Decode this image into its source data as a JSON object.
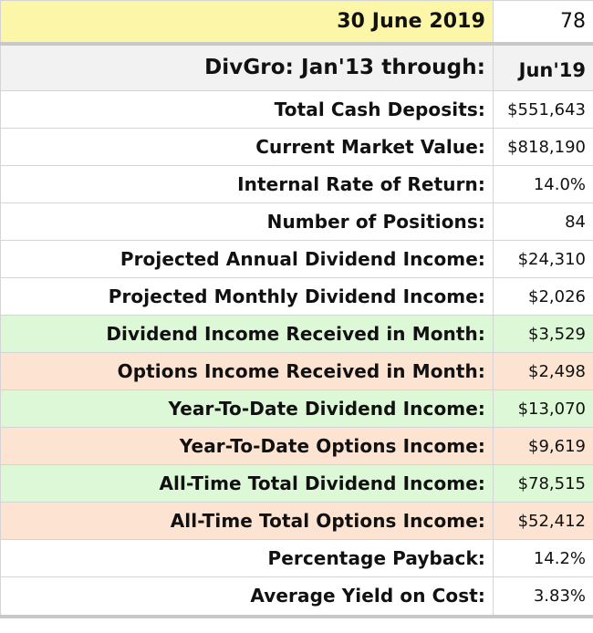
{
  "date_label": "30 June 2019",
  "date_value": "78",
  "header": {
    "label": "DivGro: Jan'13 through:",
    "value": "Jun'19"
  },
  "rows": [
    {
      "label": "Total Cash Deposits:",
      "value": "$551,643",
      "shade": "none"
    },
    {
      "label": "Current Market Value:",
      "value": "$818,190",
      "shade": "none"
    },
    {
      "label": "Internal Rate of Return:",
      "value": "14.0%",
      "shade": "none"
    },
    {
      "label": "Number of Positions:",
      "value": "84",
      "shade": "none"
    },
    {
      "label": "Projected Annual Dividend Income:",
      "value": "$24,310",
      "shade": "none"
    },
    {
      "label": "Projected Monthly Dividend Income:",
      "value": "$2,026",
      "shade": "none"
    },
    {
      "label": "Dividend Income Received in Month:",
      "value": "$3,529",
      "shade": "green"
    },
    {
      "label": "Options Income Received in Month:",
      "value": "$2,498",
      "shade": "orange"
    },
    {
      "label": "Year-To-Date Dividend Income:",
      "value": "$13,070",
      "shade": "green"
    },
    {
      "label": "Year-To-Date Options Income:",
      "value": "$9,619",
      "shade": "orange"
    },
    {
      "label": "All-Time Total Dividend Income:",
      "value": "$78,515",
      "shade": "green"
    },
    {
      "label": "All-Time Total Options Income:",
      "value": "$52,412",
      "shade": "orange"
    },
    {
      "label": "Percentage Payback:",
      "value": "14.2%",
      "shade": "none"
    },
    {
      "label": "Average Yield on Cost:",
      "value": "3.83%",
      "shade": "none"
    }
  ],
  "colors": {
    "date_highlight": "#fbf6a8",
    "header_background": "#f2f2f2",
    "dividend_rows": "#ddf8d6",
    "options_rows": "#fde4d2"
  }
}
